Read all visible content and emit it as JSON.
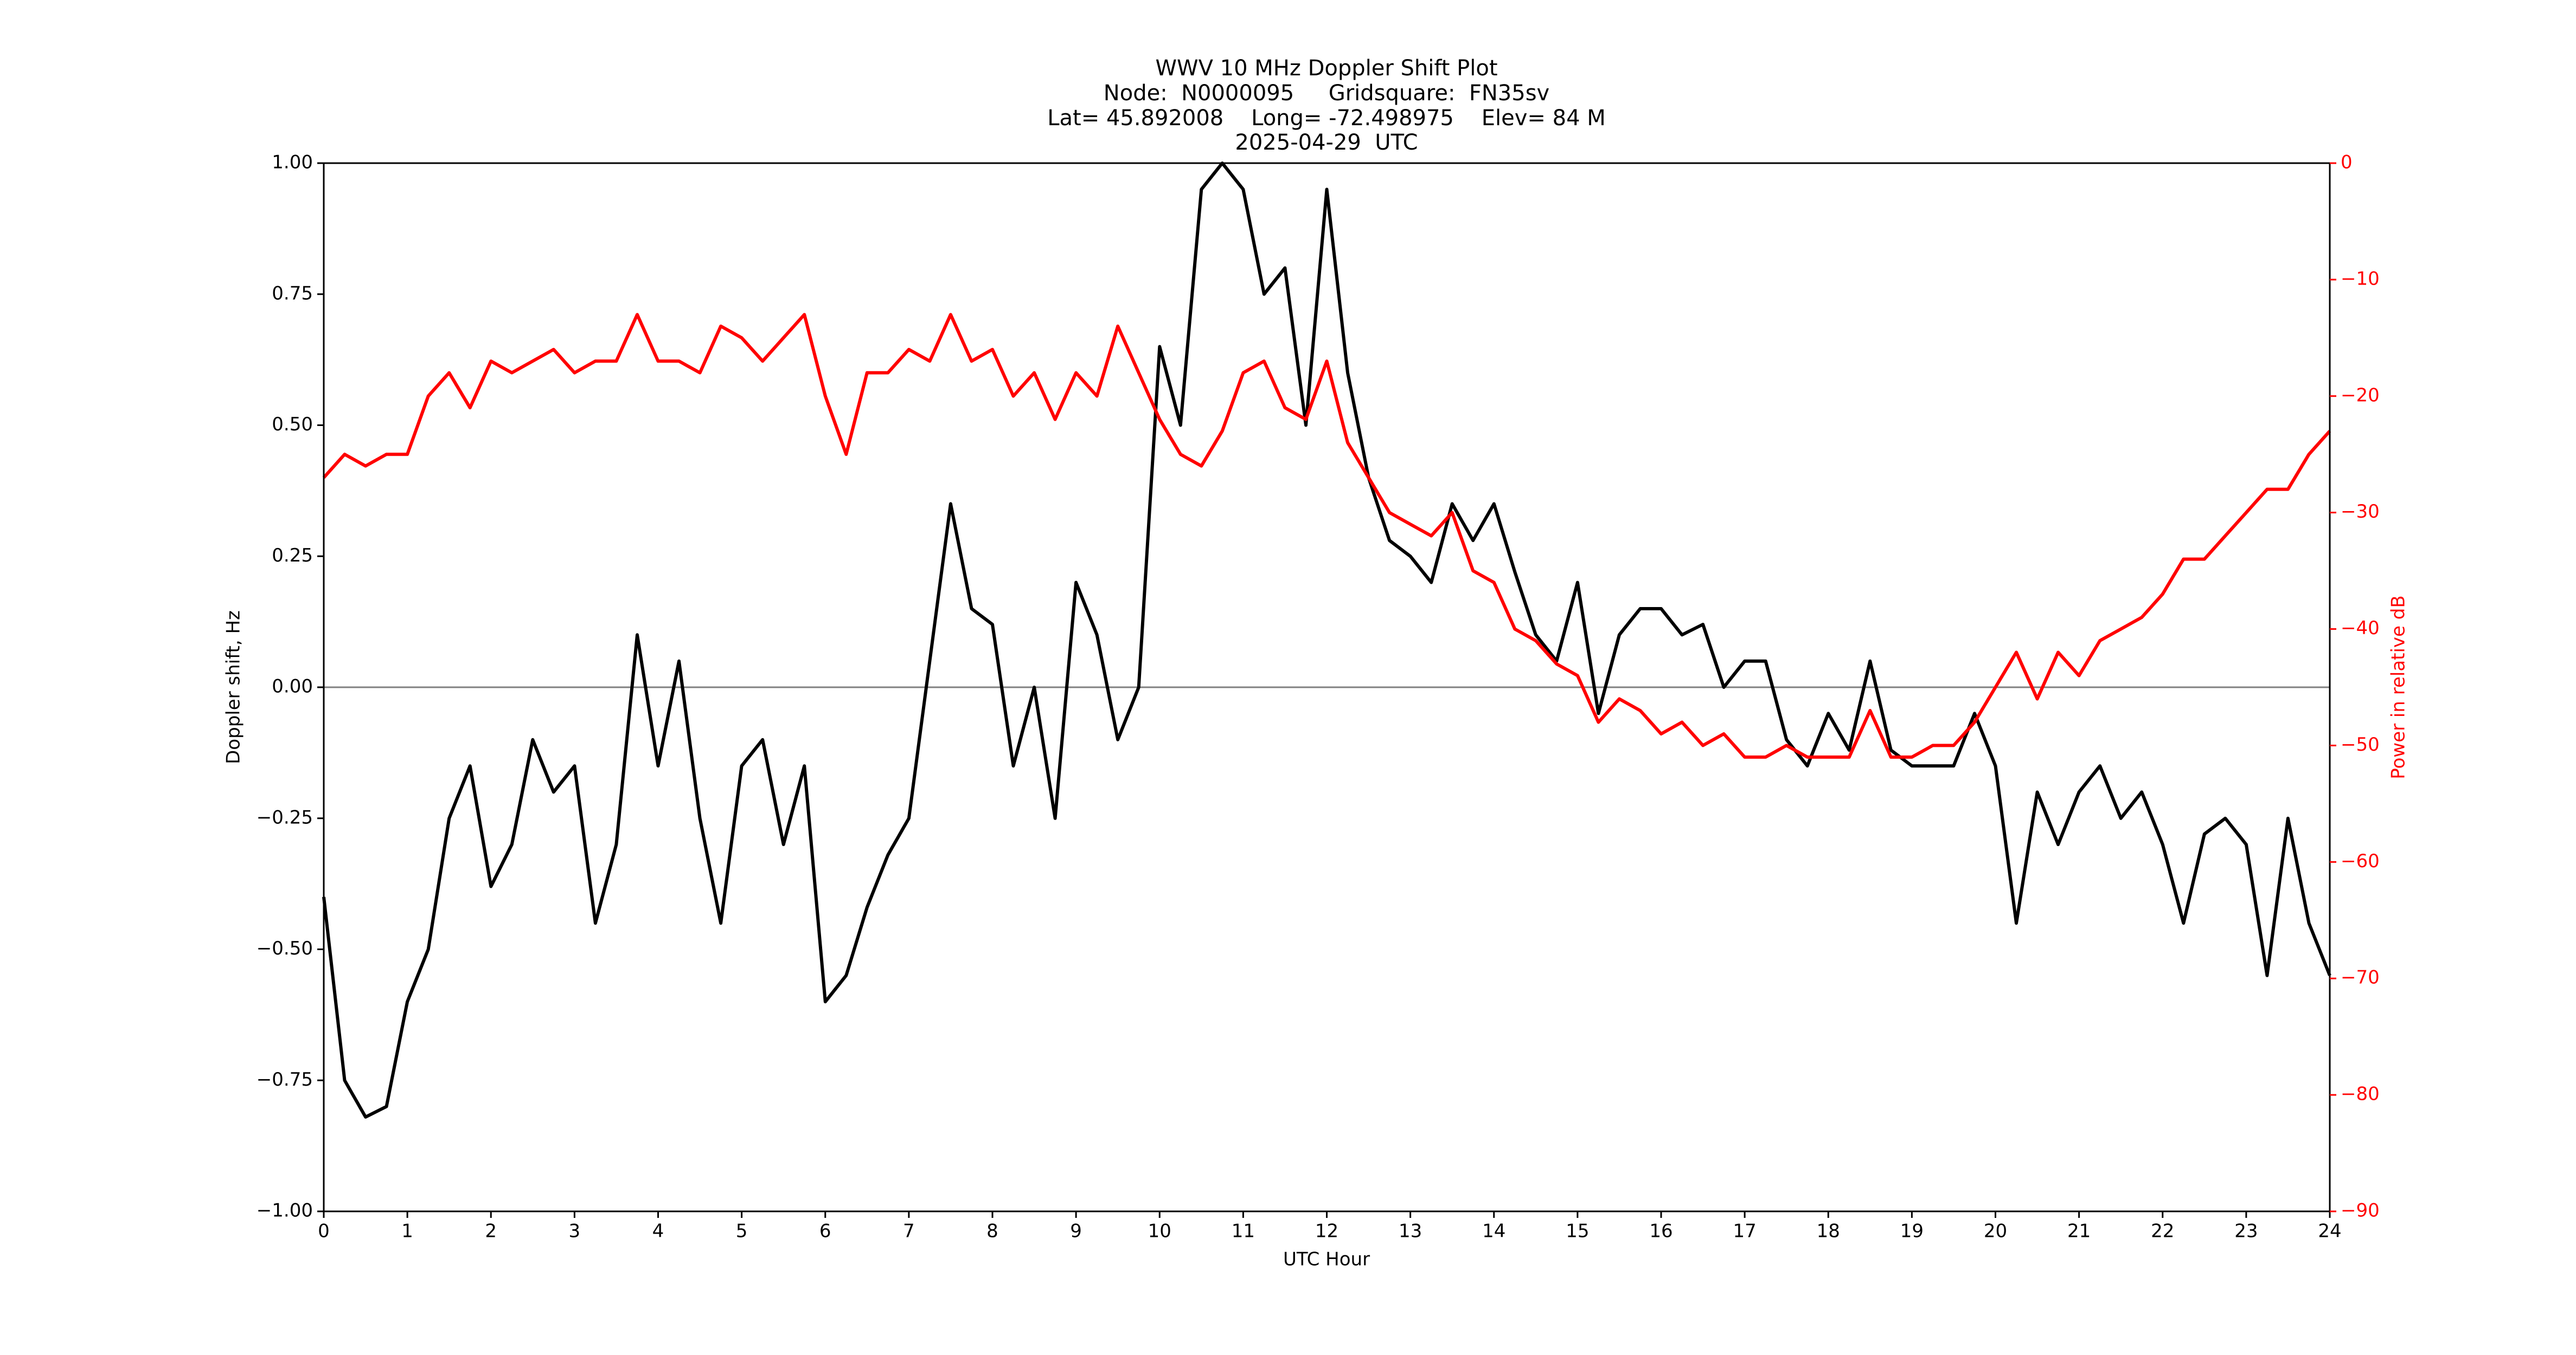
{
  "chart_data": {
    "type": "line",
    "title": [
      "WWV 10 MHz Doppler Shift Plot",
      "Node:  N0000095     Gridsquare:  FN35sv",
      "Lat= 45.892008    Long= -72.498975    Elev= 84 M",
      "2025-04-29  UTC"
    ],
    "xlabel": "UTC Hour",
    "ylabel": "Doppler shift, Hz",
    "y2label": "Power in relative dB",
    "x": [
      0,
      0.25,
      0.5,
      0.75,
      1,
      1.25,
      1.5,
      1.75,
      2,
      2.25,
      2.5,
      2.75,
      3,
      3.25,
      3.5,
      3.75,
      4,
      4.25,
      4.5,
      4.75,
      5,
      5.25,
      5.5,
      5.75,
      6,
      6.25,
      6.5,
      6.75,
      7,
      7.25,
      7.5,
      7.75,
      8,
      8.25,
      8.5,
      8.75,
      9,
      9.25,
      9.5,
      9.75,
      10,
      10.25,
      10.5,
      10.75,
      11,
      11.25,
      11.5,
      11.75,
      12,
      12.25,
      12.5,
      12.75,
      13,
      13.25,
      13.5,
      13.75,
      14,
      14.25,
      14.5,
      14.75,
      15,
      15.25,
      15.5,
      15.75,
      16,
      16.25,
      16.5,
      16.75,
      17,
      17.25,
      17.5,
      17.75,
      18,
      18.25,
      18.5,
      18.75,
      19,
      19.25,
      19.5,
      19.75,
      20,
      20.25,
      20.5,
      20.75,
      21,
      21.25,
      21.5,
      21.75,
      22,
      22.25,
      22.5,
      22.75,
      23,
      23.25,
      23.5,
      23.75,
      24
    ],
    "series": [
      {
        "color": "#000000",
        "values": [
          -0.4,
          -0.75,
          -0.82,
          -0.8,
          -0.6,
          -0.5,
          -0.25,
          -0.15,
          -0.38,
          -0.3,
          -0.1,
          -0.2,
          -0.15,
          -0.45,
          -0.3,
          0.1,
          -0.15,
          0.05,
          -0.25,
          -0.45,
          -0.15,
          -0.1,
          -0.3,
          -0.15,
          -0.6,
          -0.55,
          -0.42,
          -0.32,
          -0.25,
          0.05,
          0.35,
          0.15,
          0.12,
          -0.15,
          0.0,
          -0.25,
          0.2,
          0.1,
          -0.1,
          0.0,
          0.65,
          0.5,
          0.95,
          1.0,
          0.95,
          0.75,
          0.8,
          0.5,
          0.95,
          0.6,
          0.4,
          0.28,
          0.25,
          0.2,
          0.35,
          0.28,
          0.35,
          0.22,
          0.1,
          0.05,
          0.2,
          -0.05,
          0.1,
          0.15,
          0.15,
          0.1,
          0.12,
          0.0,
          0.05,
          0.05,
          -0.1,
          -0.15,
          -0.05,
          -0.12,
          0.05,
          -0.12,
          -0.15,
          -0.15,
          -0.15,
          -0.05,
          -0.15,
          -0.45,
          -0.2,
          -0.3,
          -0.2,
          -0.15,
          -0.25,
          -0.2,
          -0.3,
          -0.45,
          -0.28,
          -0.25,
          -0.3,
          -0.55,
          -0.25,
          -0.45,
          -0.55
        ]
      },
      {
        "color": "#ff0000",
        "axis": "y2",
        "values": [
          -27,
          -25,
          -26,
          -25,
          -25,
          -20,
          -18,
          -21,
          -17,
          -18,
          -17,
          -16,
          -18,
          -17,
          -17,
          -13,
          -17,
          -17,
          -18,
          -14,
          -15,
          -17,
          -15,
          -13,
          -20,
          -25,
          -18,
          -18,
          -16,
          -17,
          -13,
          -17,
          -16,
          -20,
          -18,
          -22,
          -18,
          -20,
          -14,
          -18,
          -22,
          -25,
          -26,
          -23,
          -18,
          -17,
          -21,
          -22,
          -17,
          -24,
          -27,
          -30,
          -31,
          -32,
          -30,
          -35,
          -36,
          -40,
          -41,
          -43,
          -44,
          -48,
          -46,
          -47,
          -49,
          -48,
          -50,
          -49,
          -51,
          -51,
          -50,
          -51,
          -51,
          -51,
          -47,
          -51,
          -51,
          -50,
          -50,
          -48,
          -45,
          -42,
          -46,
          -42,
          -44,
          -41,
          -40,
          -39,
          -37,
          -34,
          -34,
          -32,
          -30,
          -28,
          -28,
          -25,
          -23
        ]
      }
    ],
    "xlim": [
      0,
      24
    ],
    "xticks": [
      0,
      1,
      2,
      3,
      4,
      5,
      6,
      7,
      8,
      9,
      10,
      11,
      12,
      13,
      14,
      15,
      16,
      17,
      18,
      19,
      20,
      21,
      22,
      23,
      24
    ],
    "ylim": [
      -1,
      1
    ],
    "yticks": [
      {
        "value": -1,
        "label": "−1.00"
      },
      {
        "value": -0.75,
        "label": "−0.75"
      },
      {
        "value": -0.5,
        "label": "−0.50"
      },
      {
        "value": -0.25,
        "label": "−0.25"
      },
      {
        "value": 0,
        "label": "0.00"
      },
      {
        "value": 0.25,
        "label": "0.25"
      },
      {
        "value": 0.5,
        "label": "0.50"
      },
      {
        "value": 0.75,
        "label": "0.75"
      },
      {
        "value": 1,
        "label": "1.00"
      }
    ],
    "y2lim": [
      -90,
      0
    ],
    "y2ticks": [
      {
        "value": -90,
        "label": "−90"
      },
      {
        "value": -80,
        "label": "−80"
      },
      {
        "value": -70,
        "label": "−70"
      },
      {
        "value": -60,
        "label": "−60"
      },
      {
        "value": -50,
        "label": "−50"
      },
      {
        "value": -40,
        "label": "−40"
      },
      {
        "value": -30,
        "label": "−30"
      },
      {
        "value": -20,
        "label": "−20"
      },
      {
        "value": -10,
        "label": "−10"
      },
      0
    ],
    "axhline": 0,
    "grid": false
  }
}
